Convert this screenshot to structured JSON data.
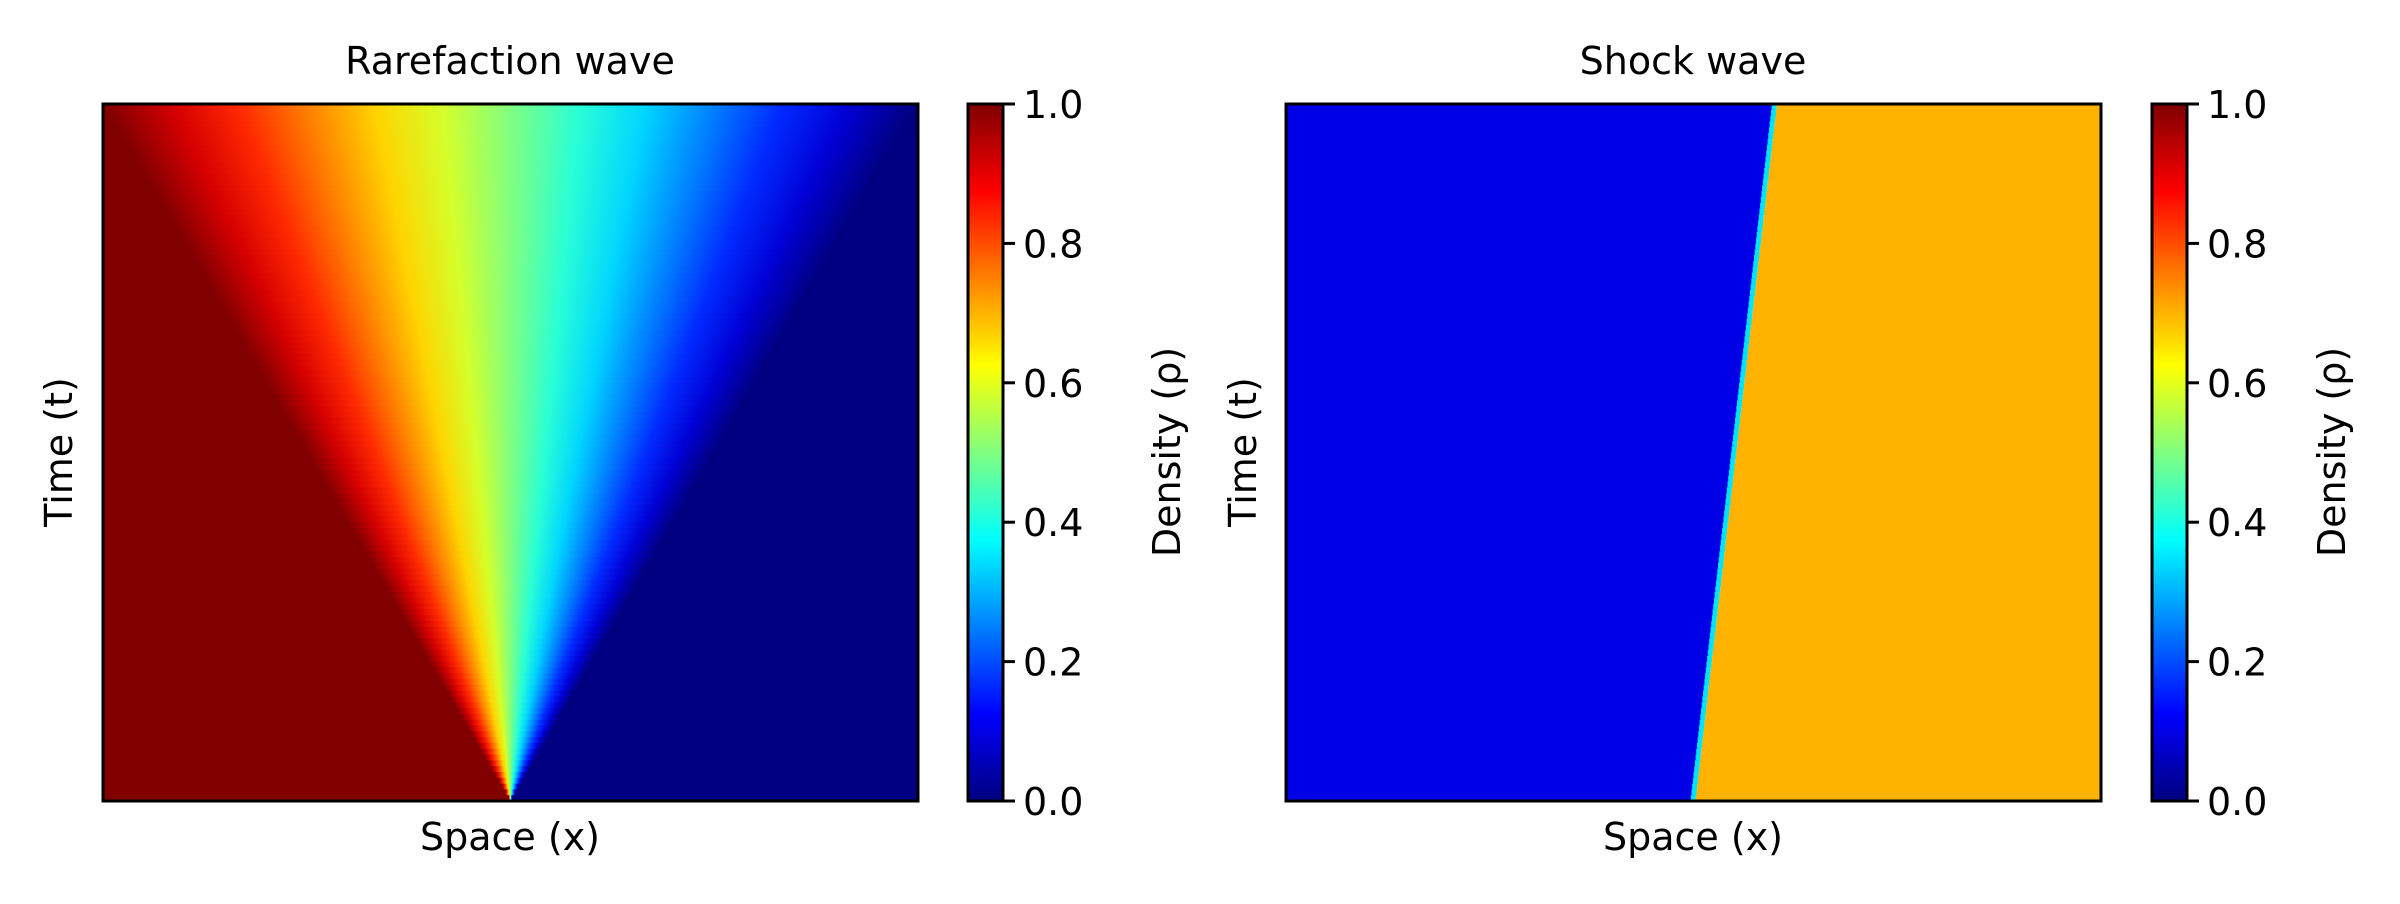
{
  "chart_data": [
    {
      "type": "heatmap",
      "title": "Rarefaction wave",
      "xlabel": "Space (x)",
      "ylabel": "Time (t)",
      "x_ticks_shown": false,
      "y_ticks_shown": false,
      "colorbar": {
        "label": "Density (ρ)",
        "colormap": "jet",
        "range": [
          0.0,
          1.0
        ],
        "ticks": [
          "0.0",
          "0.2",
          "0.4",
          "0.6",
          "0.8",
          "1.0"
        ]
      },
      "field": {
        "kind": "rarefaction",
        "rho_left": 1.0,
        "rho_right": 0.0,
        "origin_x_fraction": 0.5,
        "fan_left_edge_top_x_fraction": 0.0,
        "fan_right_edge_top_x_fraction": 1.0
      }
    },
    {
      "type": "heatmap",
      "title": "Shock wave",
      "xlabel": "Space (x)",
      "ylabel": "Time (t)",
      "x_ticks_shown": false,
      "y_ticks_shown": false,
      "colorbar": {
        "label": "Density (ρ)",
        "colormap": "jet",
        "range": [
          0.0,
          1.0
        ],
        "ticks": [
          "0.0",
          "0.2",
          "0.4",
          "0.6",
          "0.8",
          "1.0"
        ]
      },
      "field": {
        "kind": "shock",
        "rho_left": 0.1,
        "rho_right": 0.7,
        "shock_x_fraction_bottom": 0.5,
        "shock_x_fraction_top": 0.6
      }
    }
  ]
}
